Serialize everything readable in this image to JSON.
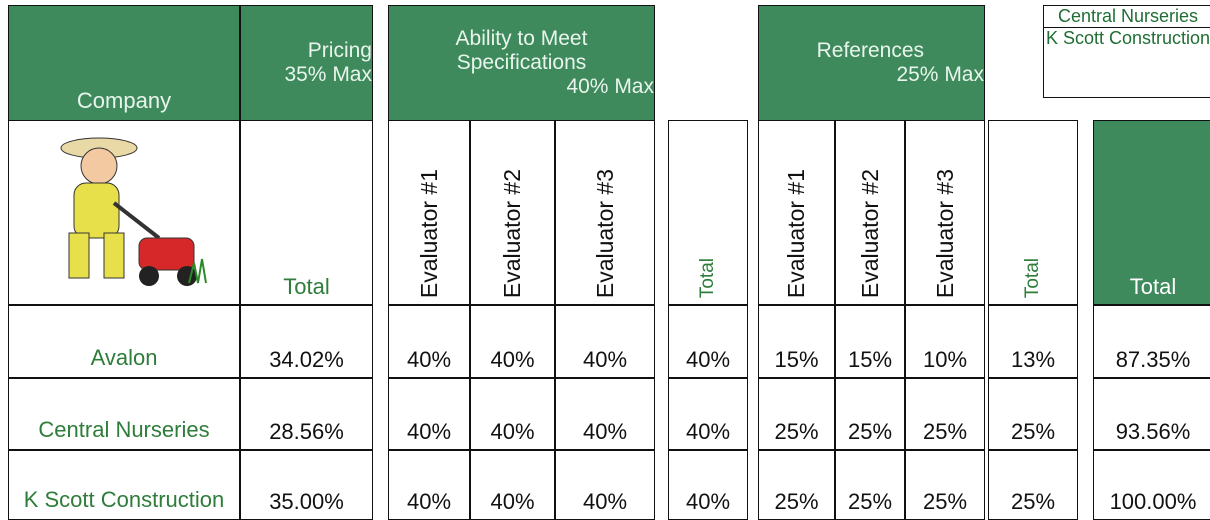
{
  "header": {
    "company": "Company",
    "pricing": {
      "title": "Pricing",
      "max": "35% Max"
    },
    "ability": {
      "title": "Ability to Meet Specifications",
      "max": "40% Max"
    },
    "references": {
      "title": "References",
      "max": "25% Max"
    }
  },
  "legend": [
    "Central Nurseries",
    "K Scott Construction"
  ],
  "subheaders": [
    "Total",
    "Evaluator #1",
    "Evaluator #2",
    "Evaluator #3",
    "Total",
    "Evaluator #1",
    "Evaluator #2",
    "Evaluator #3",
    "Total",
    "Total"
  ],
  "rows": [
    [
      "Avalon",
      "34.02%",
      "40%",
      "40%",
      "40%",
      "40%",
      "15%",
      "15%",
      "10%",
      "13%",
      "87.35%"
    ],
    [
      "Central Nurseries",
      "28.56%",
      "40%",
      "40%",
      "40%",
      "40%",
      "25%",
      "25%",
      "25%",
      "25%",
      "93.56%"
    ],
    [
      "K Scott Construction",
      "35.00%",
      "40%",
      "40%",
      "40%",
      "40%",
      "25%",
      "25%",
      "25%",
      "25%",
      "100.00%"
    ]
  ]
}
